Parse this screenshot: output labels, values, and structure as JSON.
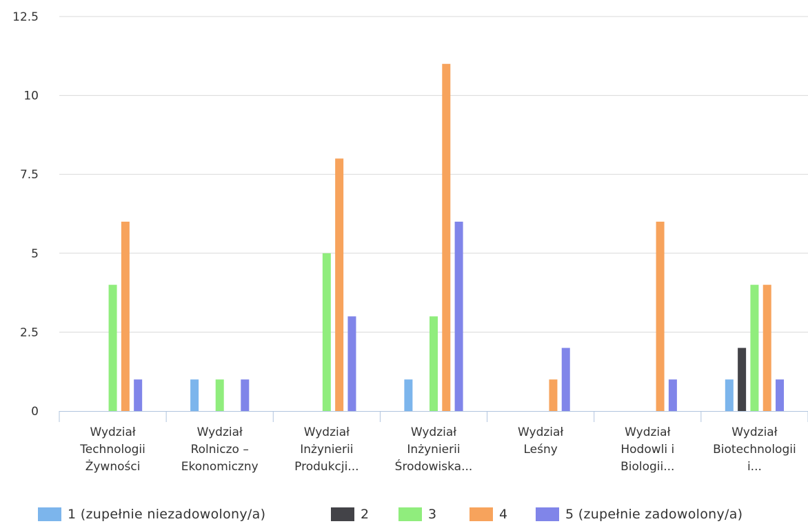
{
  "chart_data": {
    "type": "bar",
    "categories": [
      [
        "Wydział",
        "Technologii",
        "Żywności"
      ],
      [
        "Wydział",
        "Rolniczo –",
        "Ekonomiczny"
      ],
      [
        "Wydział",
        "Inżynierii",
        "Produkcji..."
      ],
      [
        "Wydział",
        "Inżynierii",
        "Środowiska..."
      ],
      [
        "Wydział",
        "Leśny"
      ],
      [
        "Wydział",
        "Hodowli i",
        "Biologii..."
      ],
      [
        "Wydział",
        "Biotechnologii",
        "i..."
      ]
    ],
    "series": [
      {
        "name": "1 (zupełnie niezadowolony/a)",
        "color": "#7cb5ec",
        "values": [
          0,
          1,
          0,
          1,
          0,
          0,
          1
        ]
      },
      {
        "name": "2",
        "color": "#434348",
        "values": [
          0,
          0,
          0,
          0,
          0,
          0,
          2
        ]
      },
      {
        "name": "3",
        "color": "#90ed7d",
        "values": [
          4,
          1,
          5,
          3,
          0,
          0,
          4
        ]
      },
      {
        "name": "4",
        "color": "#f7a35c",
        "values": [
          6,
          0,
          8,
          11,
          1,
          6,
          4
        ]
      },
      {
        "name": "5 (zupełnie zadowolony/a)",
        "color": "#8085e9",
        "values": [
          1,
          1,
          3,
          6,
          2,
          1,
          1
        ]
      }
    ],
    "yticks": [
      "0",
      "2.5",
      "5",
      "7.5",
      "10",
      "12.5"
    ],
    "ylim": [
      0,
      12.5
    ],
    "grid": true,
    "legend_position": "bottom"
  }
}
